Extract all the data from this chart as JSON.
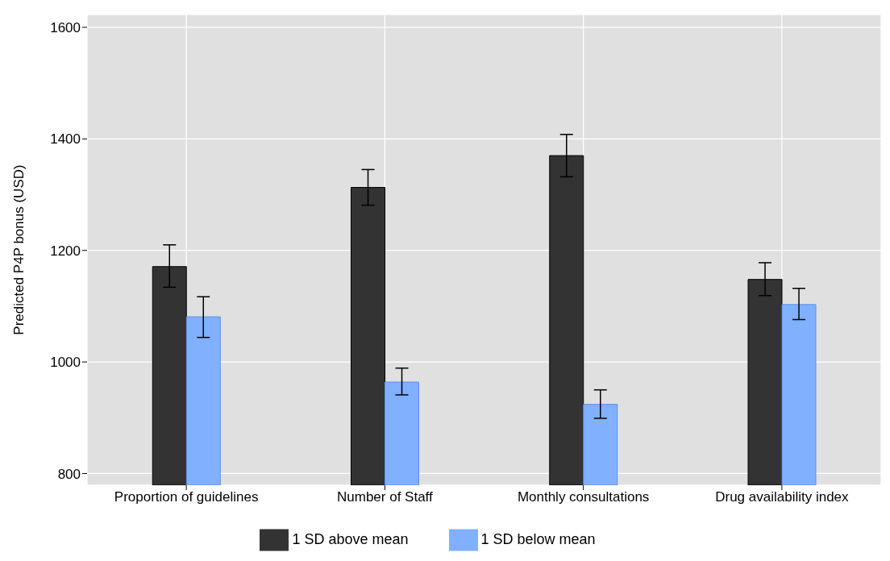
{
  "chart_data": {
    "type": "bar",
    "ylabel": "Predicted P4P bonus (USD)",
    "categories": [
      "Proportion of guidelines",
      "Number of Staff",
      "Monthly consultations",
      "Drug availability index"
    ],
    "series": [
      {
        "name": "1 SD above mean",
        "color": "#333333",
        "values": [
          1171,
          1313,
          1370,
          1148
        ],
        "errors": [
          [
            1134,
            1210
          ],
          [
            1281,
            1345
          ],
          [
            1332,
            1408
          ],
          [
            1119,
            1178
          ]
        ]
      },
      {
        "name": "1 SD below mean",
        "color": "#80b0ff",
        "values": [
          1081,
          964,
          924,
          1103
        ],
        "errors": [
          [
            1044,
            1117
          ],
          [
            941,
            989
          ],
          [
            899,
            950
          ],
          [
            1076,
            1132
          ]
        ]
      }
    ],
    "ylim": [
      779,
      1623
    ],
    "yticks": [
      800,
      1000,
      1200,
      1400,
      1600
    ],
    "grid": true,
    "legend": "bottom"
  }
}
